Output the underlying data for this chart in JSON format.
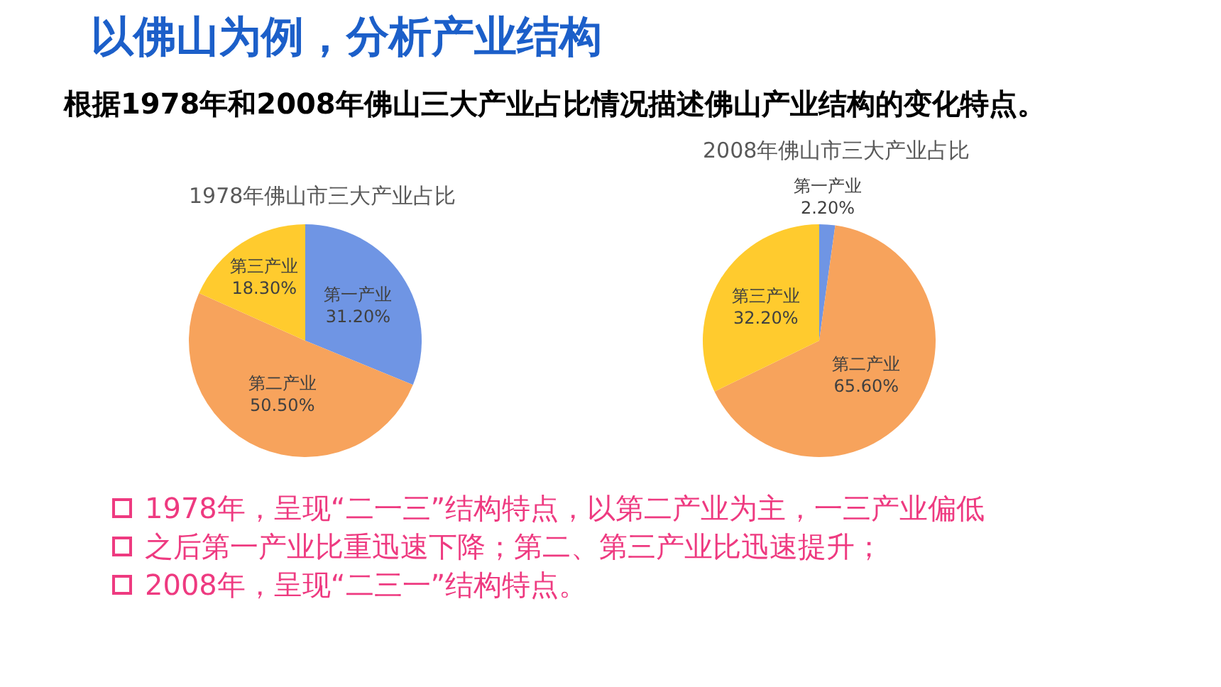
{
  "chart_data": [
    {
      "type": "other",
      "title": "以佛山为例，分析产业结构",
      "subtitle": "根据1978年和2008年佛山三大产业占比情况描述佛山产业结构的变化特点。"
    },
    {
      "type": "pie",
      "title": "1978年佛山市三大产业占比",
      "categories": [
        "第一产业",
        "第二产业",
        "第三产业"
      ],
      "values": [
        31.2,
        50.5,
        18.3
      ],
      "value_labels": [
        "31.20%",
        "50.50%",
        "18.30%"
      ],
      "colors": [
        "#6f95e4",
        "#f7a35c",
        "#ffcb2e"
      ]
    },
    {
      "type": "pie",
      "title": "2008年佛山市三大产业占比",
      "categories": [
        "第一产业",
        "第二产业",
        "第三产业"
      ],
      "values": [
        2.2,
        65.6,
        32.2
      ],
      "value_labels": [
        "2.20%",
        "65.60%",
        "32.20%"
      ],
      "colors": [
        "#6f95e4",
        "#f7a35c",
        "#ffcb2e"
      ]
    },
    {
      "type": "other",
      "annotations": [
        "1978年，呈现“二一三”结构特点，以第二产业为主，一三产业偏低",
        "之后第一产业比重迅速下降；第二、第三产业比迅速提升；",
        "2008年，呈现“二三一”结构特点。"
      ]
    }
  ]
}
